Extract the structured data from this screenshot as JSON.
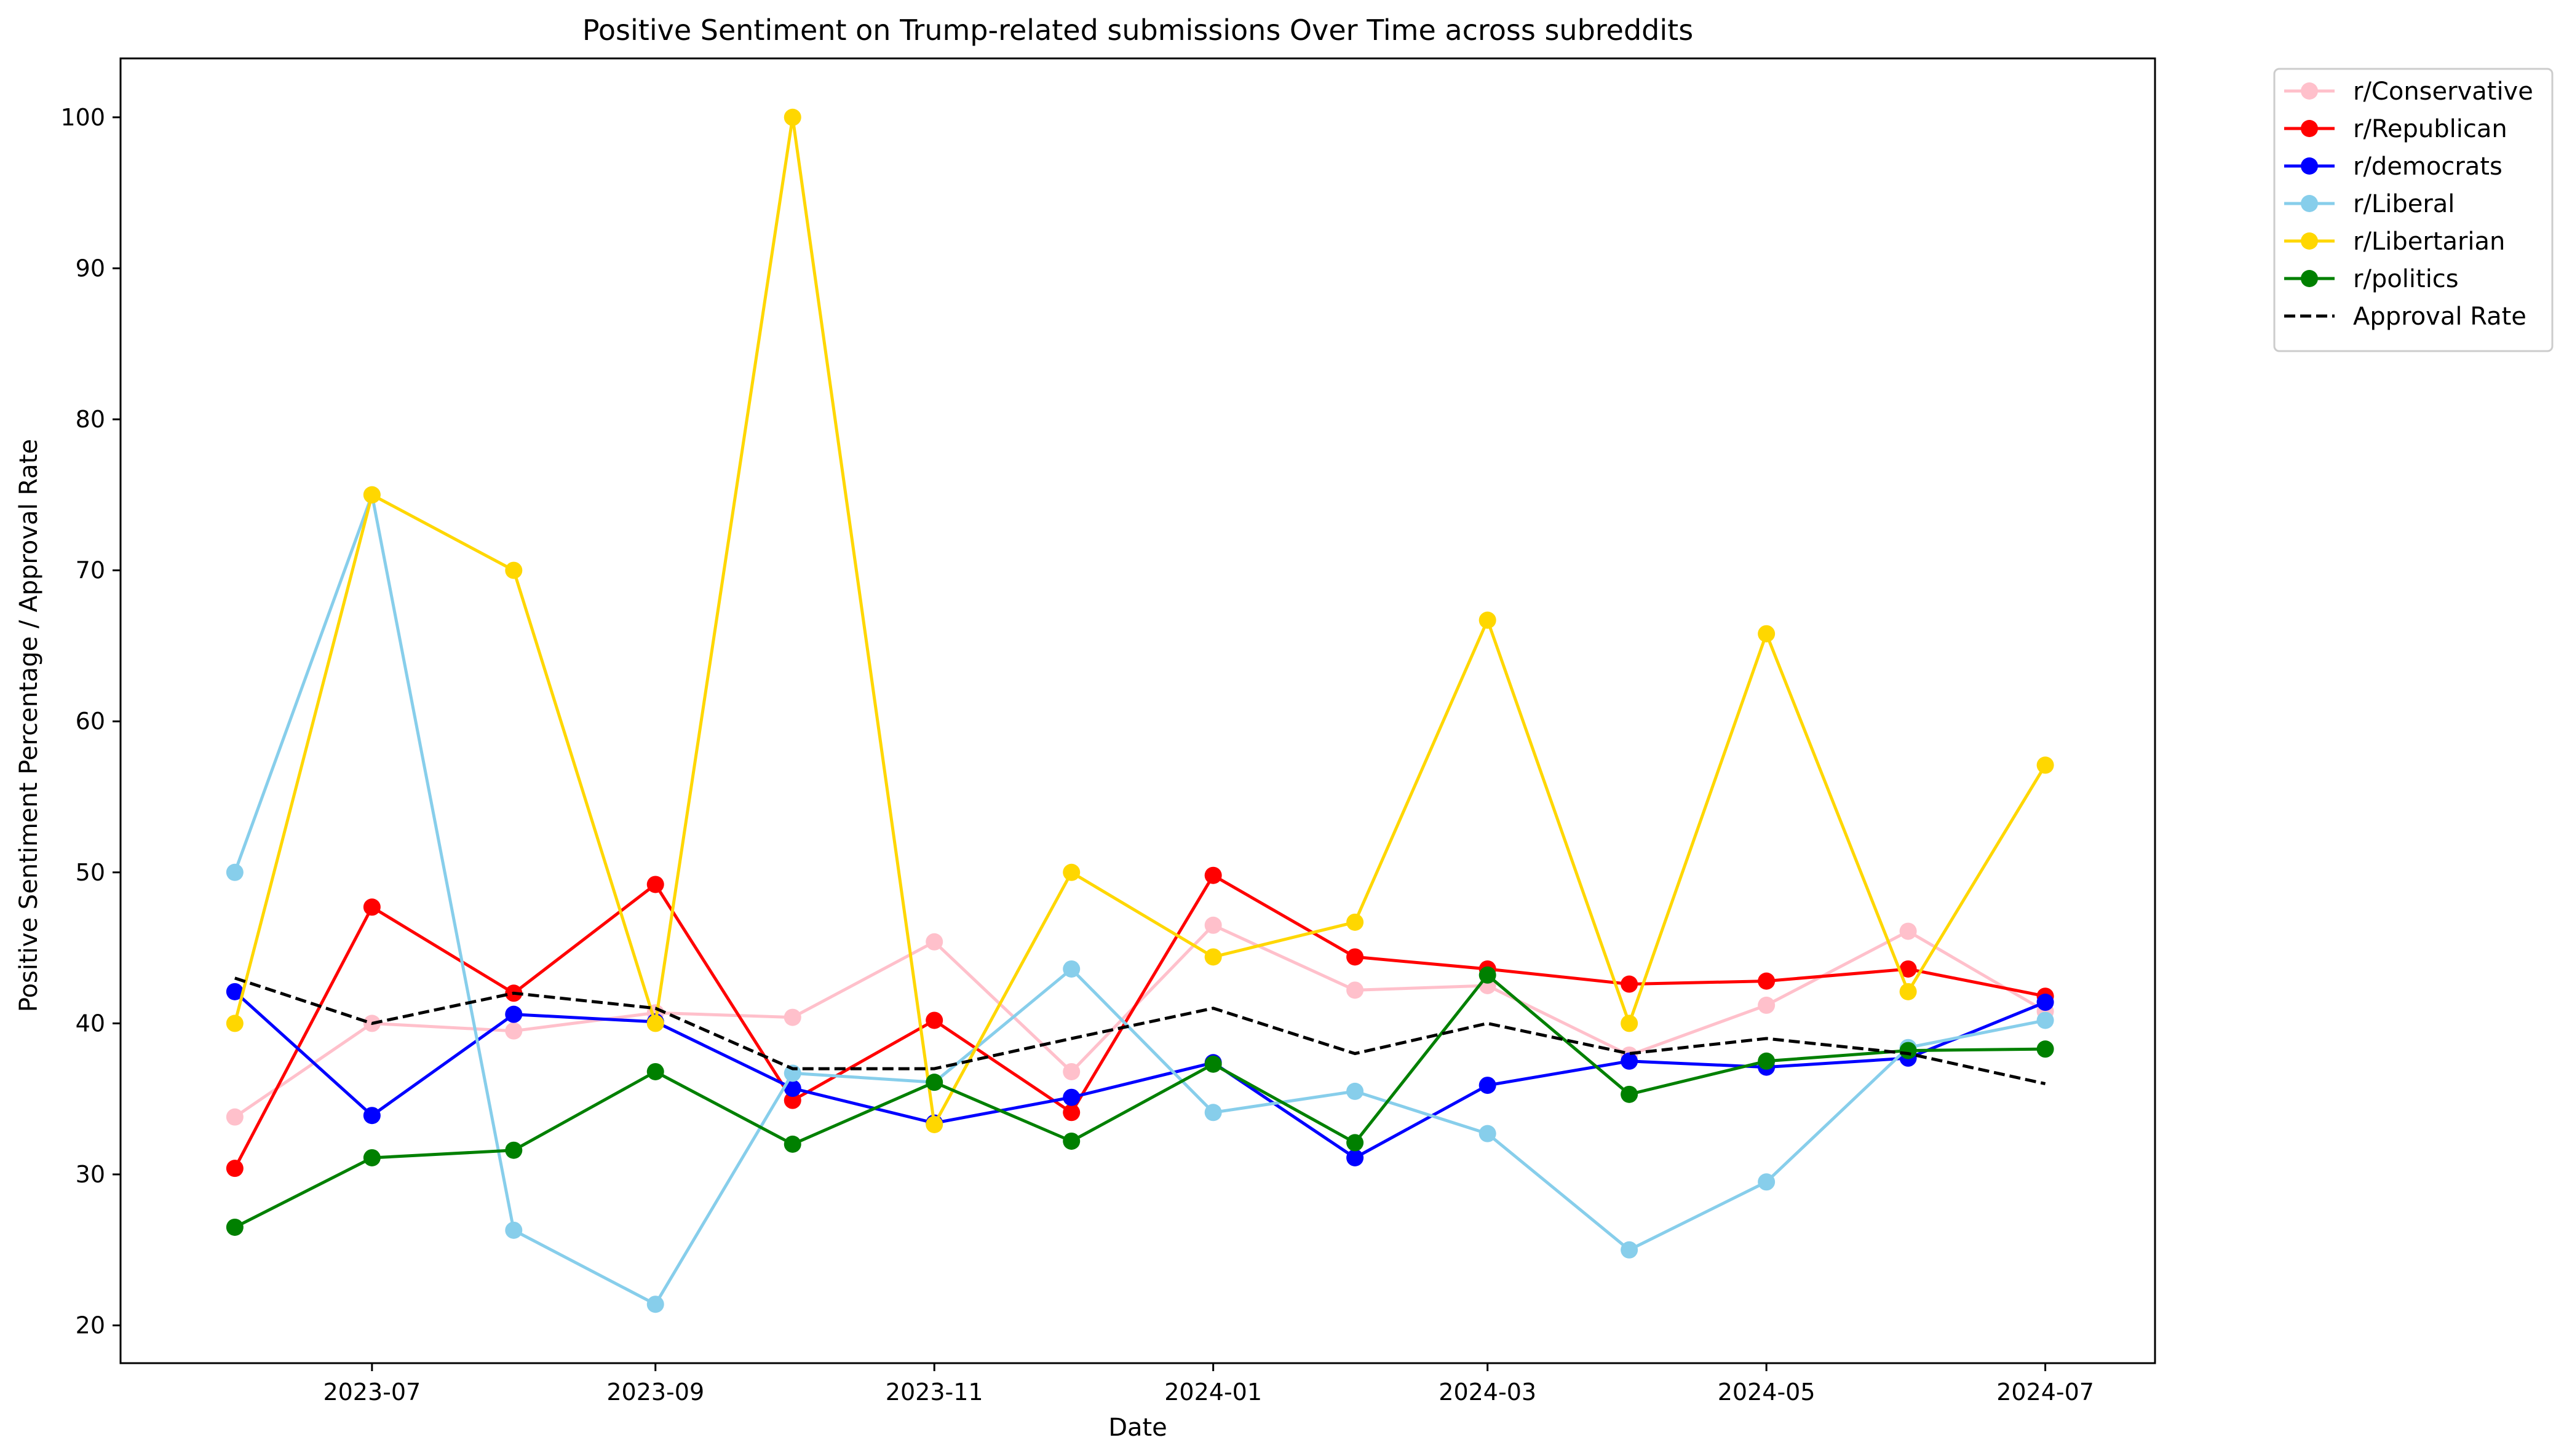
{
  "chart_data": {
    "type": "line",
    "title": "Positive Sentiment on Trump-related submissions Over Time across subreddits",
    "xlabel": "Date",
    "ylabel": "Positive Sentiment Percentage / Approval Rate",
    "xlim": [
      "2023-05-07",
      "2024-07-25"
    ],
    "ylim": [
      17.5,
      103.9
    ],
    "x_ticks": [
      "2023-07",
      "2023-09",
      "2023-11",
      "2024-01",
      "2024-03",
      "2024-05",
      "2024-07"
    ],
    "y_ticks": [
      20,
      30,
      40,
      50,
      60,
      70,
      80,
      90,
      100
    ],
    "grid": false,
    "legend_position": "outside-top-right",
    "x": [
      "2023-06",
      "2023-07",
      "2023-08",
      "2023-09",
      "2023-10",
      "2023-11",
      "2023-12",
      "2024-01",
      "2024-02",
      "2024-03",
      "2024-04",
      "2024-05",
      "2024-06",
      "2024-07"
    ],
    "series": [
      {
        "name": "r/Conservative",
        "color": "#ffc0cb",
        "style": "solid-marker",
        "values": [
          33.8,
          40.0,
          39.5,
          40.7,
          40.4,
          45.4,
          36.8,
          46.5,
          42.2,
          42.5,
          37.9,
          41.2,
          46.1,
          40.8
        ]
      },
      {
        "name": "r/Republican",
        "color": "#ff0000",
        "style": "solid-marker",
        "values": [
          30.4,
          47.7,
          42.0,
          49.2,
          34.9,
          40.2,
          34.1,
          49.8,
          44.4,
          43.6,
          42.6,
          42.8,
          43.6,
          41.8
        ]
      },
      {
        "name": "r/democrats",
        "color": "#0000ff",
        "style": "solid-marker",
        "values": [
          42.1,
          33.9,
          40.6,
          40.1,
          35.7,
          33.4,
          35.1,
          37.4,
          31.1,
          35.9,
          37.5,
          37.1,
          37.7,
          41.4
        ]
      },
      {
        "name": "r/Liberal",
        "color": "#87ceeb",
        "style": "solid-marker",
        "values": [
          50.0,
          75.0,
          26.3,
          21.4,
          36.7,
          36.1,
          43.6,
          34.1,
          35.5,
          32.7,
          25.0,
          29.5,
          38.4,
          40.2
        ]
      },
      {
        "name": "r/Libertarian",
        "color": "#ffd700",
        "style": "solid-marker",
        "values": [
          40.0,
          75.0,
          70.0,
          40.0,
          100.0,
          33.3,
          50.0,
          44.4,
          46.7,
          66.7,
          40.0,
          65.8,
          42.1,
          57.1
        ]
      },
      {
        "name": "r/politics",
        "color": "#008000",
        "style": "solid-marker",
        "values": [
          26.5,
          31.1,
          31.6,
          36.8,
          32.0,
          36.1,
          32.2,
          37.3,
          32.1,
          43.2,
          35.3,
          37.5,
          38.2,
          38.3
        ]
      },
      {
        "name": "Approval Rate",
        "color": "#000000",
        "style": "dashed",
        "values": [
          43.0,
          40.0,
          42.0,
          41.0,
          37.0,
          37.0,
          39.0,
          41.0,
          38.0,
          40.0,
          38.0,
          39.0,
          38.0,
          36.0
        ]
      }
    ]
  }
}
